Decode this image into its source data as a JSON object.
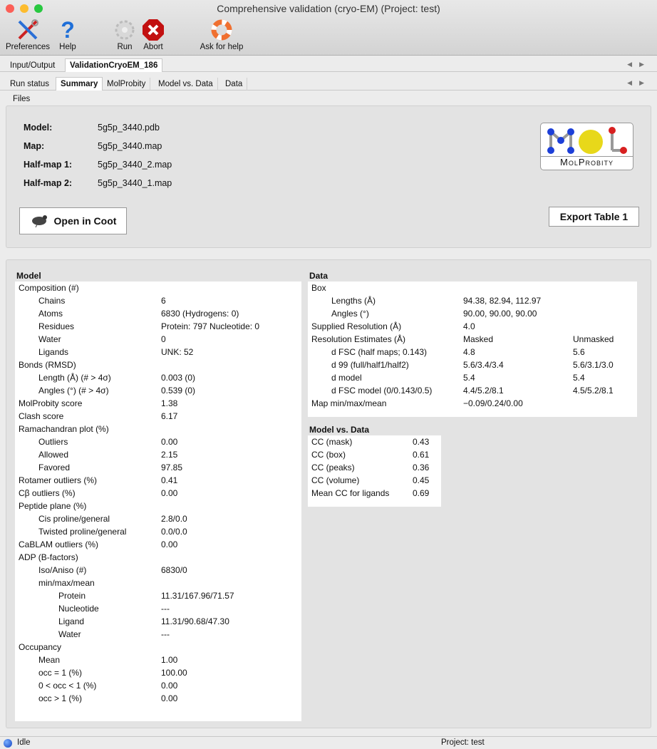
{
  "window": {
    "title": "Comprehensive validation (cryo-EM) (Project: test)"
  },
  "toolbar": {
    "preferences": "Preferences",
    "help": "Help",
    "run": "Run",
    "abort": "Abort",
    "ask": "Ask for help"
  },
  "tabs_outer": [
    "Input/Output",
    "ValidationCryoEM_186"
  ],
  "tabs_inner": [
    "Run status",
    "Summary",
    "MolProbity",
    "Model vs. Data",
    "Data"
  ],
  "files": {
    "section": "Files",
    "model_label": "Model:",
    "model": "5g5p_3440.pdb",
    "map_label": "Map:",
    "map": "5g5p_3440.map",
    "half1_label": "Half-map 1:",
    "half1": "5g5p_3440_2.map",
    "half2_label": "Half-map 2:",
    "half2": "5g5p_3440_1.map",
    "open_coot": "Open in Coot",
    "export": "Export Table 1",
    "logo_text": "MolProbity"
  },
  "model": {
    "title": "Model",
    "rows": [
      [
        "Composition (#)",
        "",
        0
      ],
      [
        "Chains",
        "6",
        1
      ],
      [
        "Atoms",
        "6830 (Hydrogens: 0)",
        1
      ],
      [
        "Residues",
        "Protein: 797 Nucleotide: 0",
        1
      ],
      [
        "Water",
        "0",
        1
      ],
      [
        "Ligands",
        "UNK: 52",
        1
      ],
      [
        "Bonds (RMSD)",
        "",
        0
      ],
      [
        "Length (Å) (# > 4σ)",
        "0.003 (0)",
        1
      ],
      [
        "Angles (°) (# > 4σ)",
        "0.539 (0)",
        1
      ],
      [
        "MolProbity score",
        "1.38",
        0
      ],
      [
        "Clash score",
        "6.17",
        0
      ],
      [
        "Ramachandran plot (%)",
        "",
        0
      ],
      [
        "Outliers",
        "0.00",
        1
      ],
      [
        "Allowed",
        "2.15",
        1
      ],
      [
        "Favored",
        "97.85",
        1
      ],
      [
        "Rotamer outliers (%)",
        "0.41",
        0
      ],
      [
        "Cβ outliers (%)",
        "0.00",
        0
      ],
      [
        "Peptide plane (%)",
        "",
        0
      ],
      [
        "Cis proline/general",
        "2.8/0.0",
        1
      ],
      [
        "Twisted proline/general",
        "0.0/0.0",
        1
      ],
      [
        "CaBLAM outliers (%)",
        "0.00",
        0
      ],
      [
        "ADP (B-factors)",
        "",
        0
      ],
      [
        "Iso/Aniso (#)",
        "6830/0",
        1
      ],
      [
        "min/max/mean",
        "",
        1
      ],
      [
        "Protein",
        "11.31/167.96/71.57",
        2
      ],
      [
        "Nucleotide",
        "---",
        2
      ],
      [
        "Ligand",
        "11.31/90.68/47.30",
        2
      ],
      [
        "Water",
        "---",
        2
      ],
      [
        "Occupancy",
        "",
        0
      ],
      [
        "Mean",
        "1.00",
        1
      ],
      [
        "occ = 1 (%)",
        "100.00",
        1
      ],
      [
        "0 < occ < 1 (%)",
        "0.00",
        1
      ],
      [
        "occ > 1 (%)",
        "0.00",
        1
      ]
    ]
  },
  "data": {
    "title": "Data",
    "rows": [
      [
        "Box",
        "",
        "",
        0
      ],
      [
        "Lengths (Å)",
        "94.38, 82.94, 112.97",
        "",
        1
      ],
      [
        "Angles (°)",
        "90.00, 90.00, 90.00",
        "",
        1
      ],
      [
        "Supplied Resolution (Å)",
        "4.0",
        "",
        0
      ],
      [
        "Resolution Estimates (Å)",
        "Masked",
        "Unmasked",
        0
      ],
      [
        "d FSC (half maps; 0.143)",
        "4.8",
        "5.6",
        1
      ],
      [
        "d 99 (full/half1/half2)",
        "5.6/3.4/3.4",
        "5.6/3.1/3.0",
        1
      ],
      [
        "d model",
        "5.4",
        "5.4",
        1
      ],
      [
        "d FSC model (0/0.143/0.5)",
        "4.4/5.2/8.1",
        "4.5/5.2/8.1",
        1
      ],
      [
        "Map min/max/mean",
        "−0.09/0.24/0.00",
        "",
        0
      ]
    ]
  },
  "model_vs_data": {
    "title": "Model vs. Data",
    "rows": [
      [
        "CC (mask)",
        "0.43"
      ],
      [
        "CC (box)",
        "0.61"
      ],
      [
        "CC (peaks)",
        "0.36"
      ],
      [
        "CC (volume)",
        "0.45"
      ],
      [
        "Mean CC for ligands",
        "0.69"
      ]
    ]
  },
  "status": {
    "state": "Idle",
    "project": "Project: test"
  }
}
